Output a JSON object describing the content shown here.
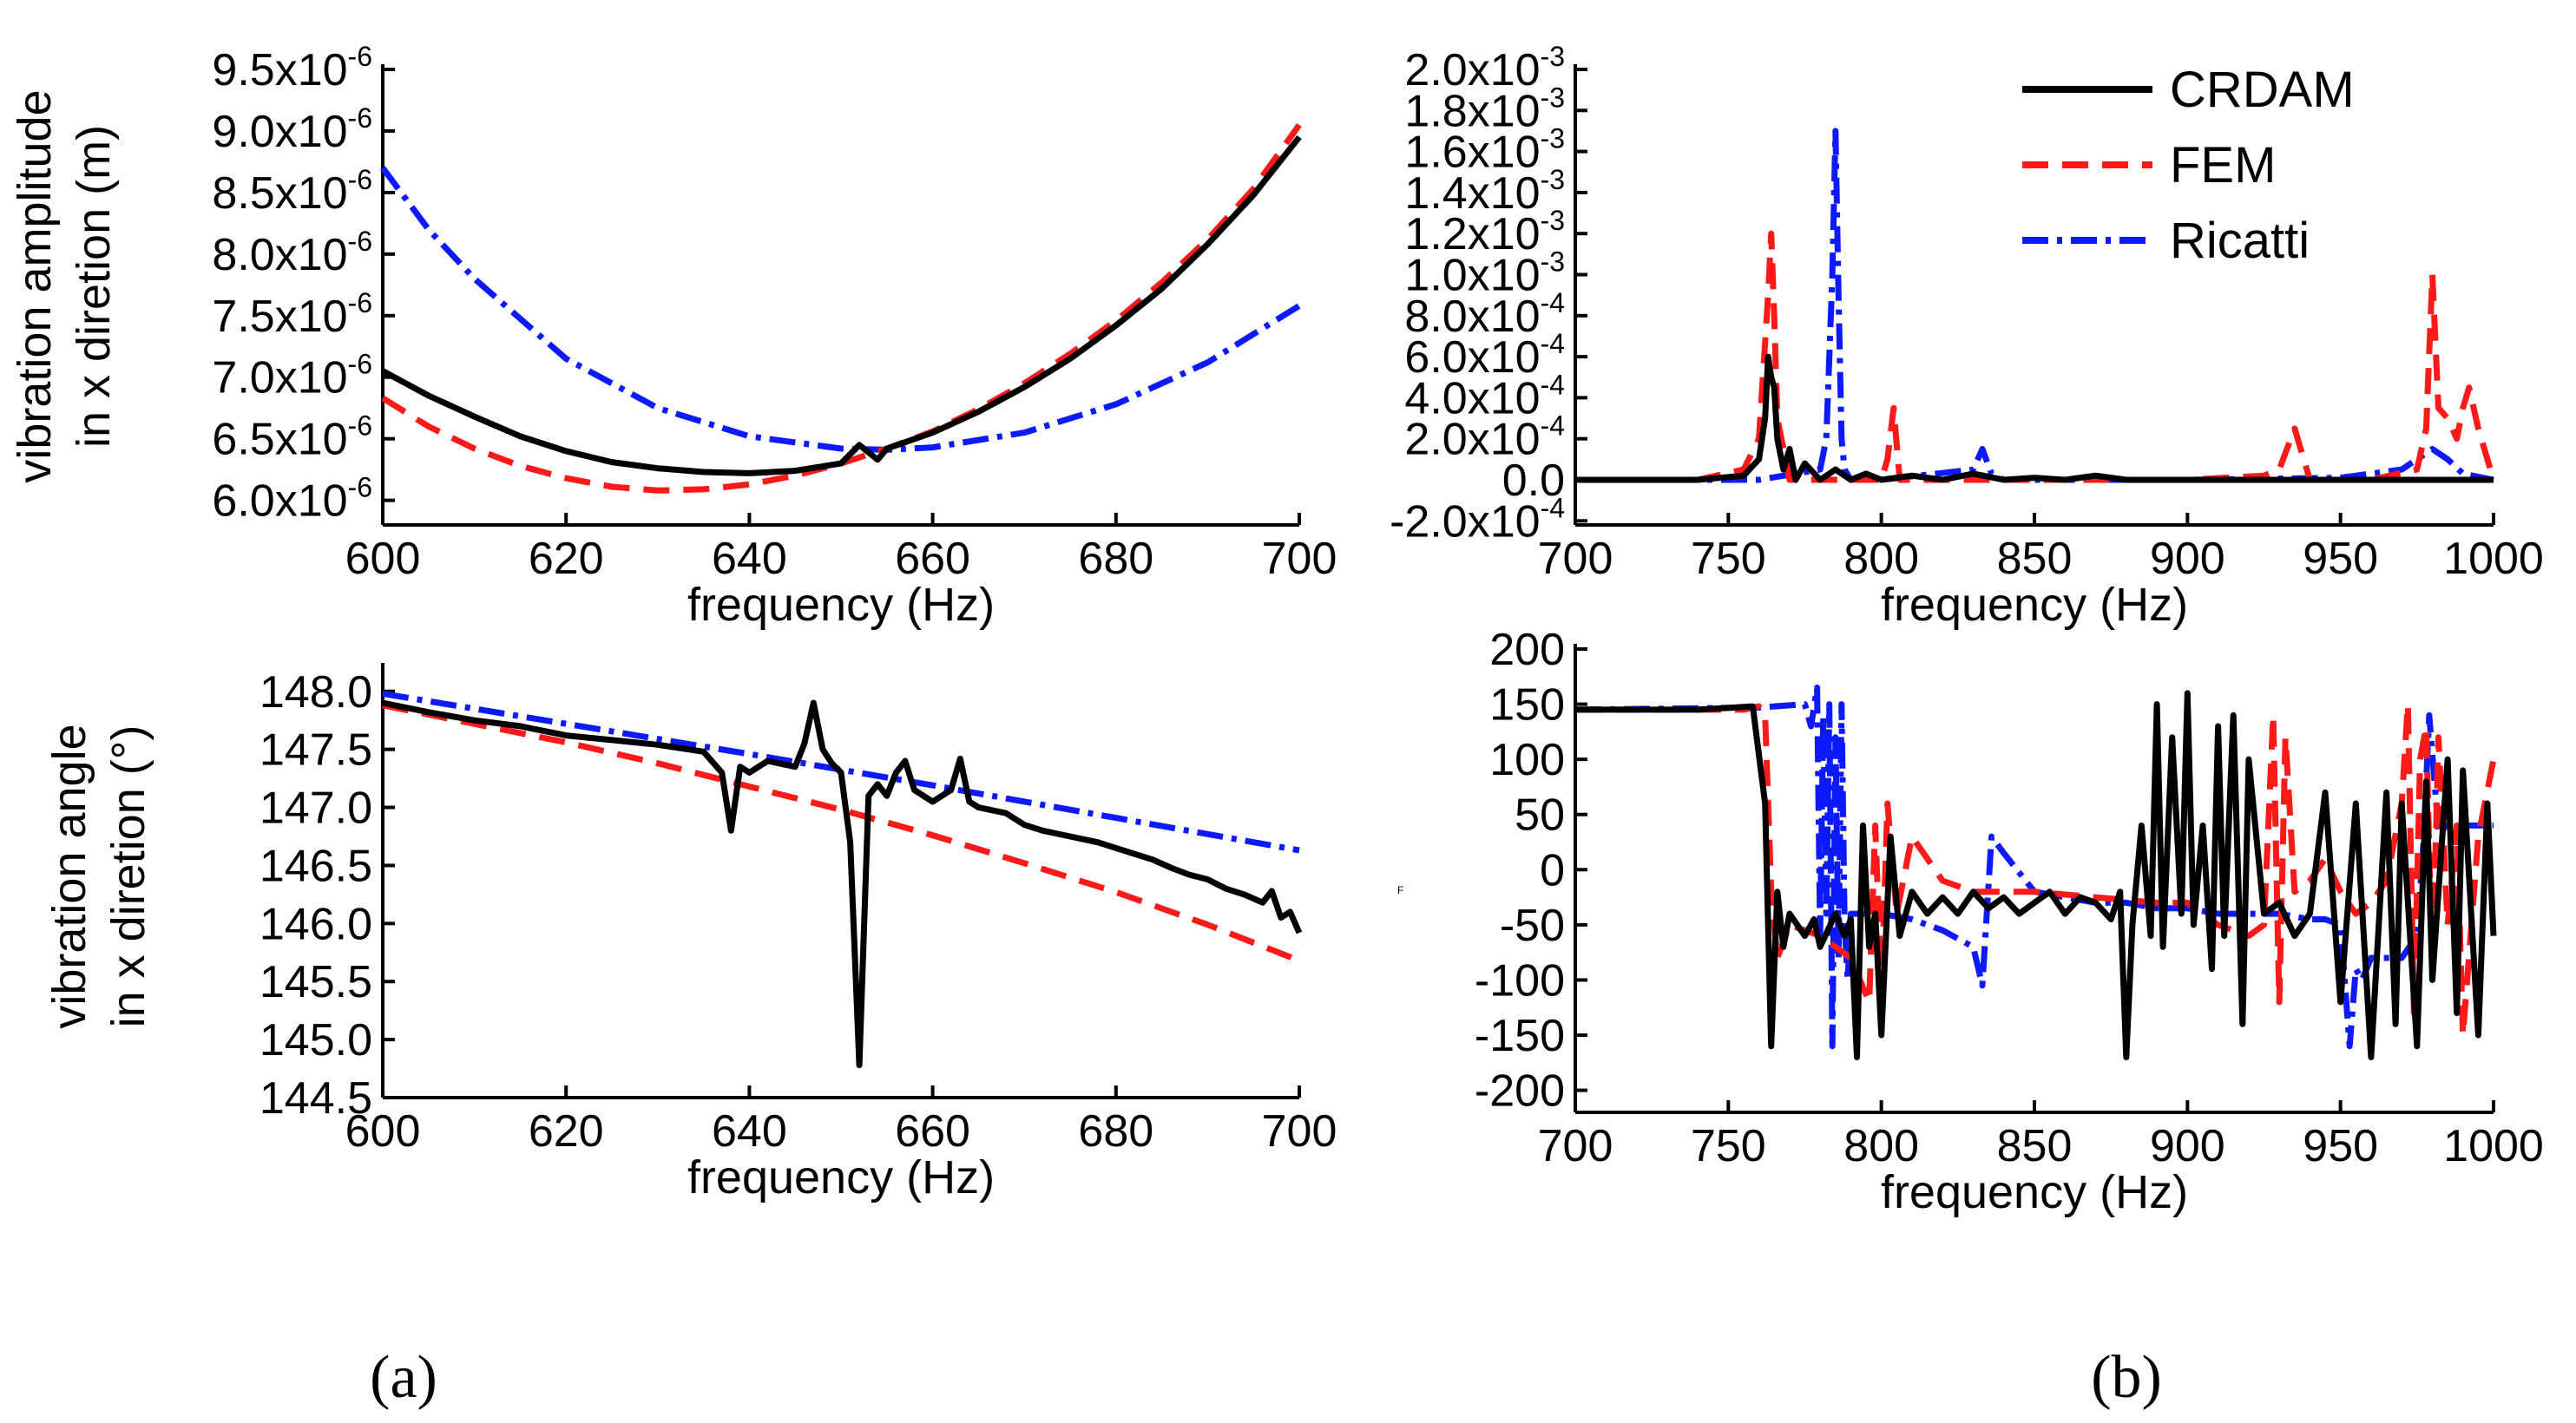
{
  "chart_data": [
    {
      "id": "a-top",
      "type": "line",
      "panel": "(a)",
      "xlabel": "frequency (Hz)",
      "ylabel": [
        "vibration amplitude",
        "in x diretion (m)"
      ],
      "xlim": [
        600,
        700
      ],
      "ylim": [
        5.8e-06,
        9.5e-06
      ],
      "xticks": [
        600,
        620,
        640,
        660,
        680,
        700
      ],
      "xtick_labels": [
        "600",
        "620",
        "640",
        "660",
        "680",
        "700"
      ],
      "yticks": [
        6e-06,
        6.5e-06,
        7e-06,
        7.5e-06,
        8e-06,
        8.5e-06,
        9e-06,
        9.5e-06
      ],
      "ytick_labels": [
        {
          "base": "6.0x10",
          "exp": "-6"
        },
        {
          "base": "6.5x10",
          "exp": "-6"
        },
        {
          "base": "7.0x10",
          "exp": "-6"
        },
        {
          "base": "7.5x10",
          "exp": "-6"
        },
        {
          "base": "8.0x10",
          "exp": "-6"
        },
        {
          "base": "8.5x10",
          "exp": "-6"
        },
        {
          "base": "9.0x10",
          "exp": "-6"
        },
        {
          "base": "9.5x10",
          "exp": "-6"
        }
      ],
      "series": [
        {
          "name": "CRDAM",
          "x": [
            600,
            605,
            610,
            615,
            620,
            625,
            630,
            635,
            640,
            645,
            650,
            652,
            654,
            655,
            660,
            665,
            670,
            675,
            680,
            685,
            690,
            695,
            700
          ],
          "values": [
            7.05e-06,
            6.85e-06,
            6.68e-06,
            6.52e-06,
            6.4e-06,
            6.31e-06,
            6.26e-06,
            6.23e-06,
            6.22e-06,
            6.24e-06,
            6.3e-06,
            6.45e-06,
            6.33e-06,
            6.42e-06,
            6.55e-06,
            6.72e-06,
            6.92e-06,
            7.15e-06,
            7.42e-06,
            7.72e-06,
            8.08e-06,
            8.48e-06,
            8.95e-06
          ]
        },
        {
          "name": "FEM",
          "x": [
            600,
            605,
            610,
            615,
            620,
            625,
            630,
            635,
            640,
            645,
            650,
            655,
            660,
            665,
            670,
            675,
            680,
            685,
            690,
            695,
            700
          ],
          "values": [
            6.83e-06,
            6.6e-06,
            6.42e-06,
            6.28e-06,
            6.18e-06,
            6.11e-06,
            6.08e-06,
            6.09e-06,
            6.13e-06,
            6.2e-06,
            6.3e-06,
            6.42e-06,
            6.56e-06,
            6.74e-06,
            6.95e-06,
            7.19e-06,
            7.46e-06,
            7.77e-06,
            8.12e-06,
            8.53e-06,
            9.05e-06
          ]
        },
        {
          "name": "Ricatti",
          "x": [
            600,
            605,
            610,
            620,
            630,
            640,
            650,
            655,
            660,
            670,
            680,
            690,
            700
          ],
          "values": [
            8.7e-06,
            8.2e-06,
            7.8e-06,
            7.15e-06,
            6.75e-06,
            6.52e-06,
            6.42e-06,
            6.41e-06,
            6.43e-06,
            6.55e-06,
            6.78e-06,
            7.12e-06,
            7.58e-06
          ]
        }
      ]
    },
    {
      "id": "a-bottom",
      "type": "line",
      "panel": "(a)",
      "xlabel": "frequency (Hz)",
      "ylabel": [
        "vibration angle",
        "in x diretion (°)"
      ],
      "xlim": [
        600,
        700
      ],
      "ylim": [
        144.5,
        148.2
      ],
      "xticks": [
        600,
        620,
        640,
        660,
        680,
        700
      ],
      "xtick_labels": [
        "600",
        "620",
        "640",
        "660",
        "680",
        "700"
      ],
      "yticks": [
        144.5,
        145.0,
        145.5,
        146.0,
        146.5,
        147.0,
        147.5,
        148.0
      ],
      "ytick_labels": [
        "144.5",
        "145.0",
        "145.5",
        "146.0",
        "146.5",
        "147.0",
        "147.5",
        "148.0"
      ],
      "series": [
        {
          "name": "CRDAM",
          "x": [
            600,
            605,
            610,
            615,
            620,
            625,
            630,
            635,
            637,
            638,
            639,
            640,
            642,
            645,
            646,
            647,
            648,
            649,
            650,
            651,
            652,
            653,
            654,
            655,
            656,
            657,
            658,
            660,
            662,
            663,
            664,
            665,
            668,
            670,
            672,
            675,
            678,
            680,
            682,
            684,
            686,
            688,
            690,
            692,
            694,
            696,
            697,
            698,
            699,
            700
          ],
          "values": [
            147.9,
            147.82,
            147.75,
            147.7,
            147.62,
            147.58,
            147.54,
            147.48,
            147.3,
            146.8,
            147.35,
            147.3,
            147.4,
            147.35,
            147.55,
            147.9,
            147.5,
            147.38,
            147.3,
            146.7,
            144.78,
            147.1,
            147.2,
            147.1,
            147.3,
            147.4,
            147.15,
            147.05,
            147.15,
            147.42,
            147.05,
            147.0,
            146.95,
            146.85,
            146.8,
            146.75,
            146.7,
            146.65,
            146.6,
            146.55,
            146.48,
            146.42,
            146.38,
            146.3,
            146.25,
            146.18,
            146.28,
            146.05,
            146.1,
            145.92
          ]
        },
        {
          "name": "FEM",
          "x": [
            600,
            610,
            620,
            630,
            640,
            650,
            660,
            670,
            680,
            690,
            700
          ],
          "values": [
            147.88,
            147.72,
            147.56,
            147.38,
            147.18,
            146.98,
            146.76,
            146.52,
            146.27,
            145.99,
            145.68
          ]
        },
        {
          "name": "Ricatti",
          "x": [
            600,
            620,
            640,
            660,
            680,
            700
          ],
          "values": [
            147.98,
            147.72,
            147.46,
            147.19,
            146.91,
            146.63
          ]
        }
      ]
    },
    {
      "id": "b-top",
      "type": "line",
      "panel": "(b)",
      "xlabel": "frequency (Hz)",
      "ylabel": [],
      "xlim": [
        700,
        1000
      ],
      "ylim": [
        -0.00022,
        0.002
      ],
      "xticks": [
        700,
        750,
        800,
        850,
        900,
        950,
        1000
      ],
      "xtick_labels": [
        "700",
        "750",
        "800",
        "850",
        "900",
        "950",
        "1000"
      ],
      "yticks": [
        -0.0002,
        0.0,
        0.0002,
        0.0004,
        0.0006,
        0.0008,
        0.001,
        0.0012,
        0.0014,
        0.0016,
        0.0018,
        0.002
      ],
      "ytick_labels": [
        {
          "base": "-2.0x10",
          "exp": "-4"
        },
        {
          "base": "0.0",
          "exp": ""
        },
        {
          "base": "2.0x10",
          "exp": "-4"
        },
        {
          "base": "4.0x10",
          "exp": "-4"
        },
        {
          "base": "6.0x10",
          "exp": "-4"
        },
        {
          "base": "8.0x10",
          "exp": "-4"
        },
        {
          "base": "1.0x10",
          "exp": "-3"
        },
        {
          "base": "1.2x10",
          "exp": "-3"
        },
        {
          "base": "1.4x10",
          "exp": "-3"
        },
        {
          "base": "1.6x10",
          "exp": "-3"
        },
        {
          "base": "1.8x10",
          "exp": "-3"
        },
        {
          "base": "2.0x10",
          "exp": "-3"
        }
      ],
      "legend": {
        "position": "top-right",
        "entries": [
          "CRDAM",
          "FEM",
          "Ricatti"
        ]
      },
      "series": [
        {
          "name": "CRDAM",
          "x": [
            700,
            740,
            755,
            760,
            762,
            763,
            764,
            765,
            766,
            768,
            770,
            772,
            775,
            780,
            785,
            790,
            795,
            800,
            810,
            820,
            830,
            840,
            850,
            860,
            870,
            880,
            900,
            920,
            940,
            960,
            980,
            1000
          ],
          "values": [
            0,
            0,
            2e-05,
            0.0001,
            0.0003,
            0.0006,
            0.0005,
            0.00045,
            0.0002,
            5e-05,
            0.00015,
            0.0,
            8e-05,
            0.0,
            5e-05,
            0.0,
            3e-05,
            0.0,
            2e-05,
            0.0,
            3e-05,
            0.0,
            1e-05,
            0.0,
            2e-05,
            0.0,
            0.0,
            0.0,
            0.0,
            0.0,
            0.0,
            0.0
          ]
        },
        {
          "name": "FEM",
          "x": [
            700,
            740,
            755,
            760,
            763,
            764,
            765,
            766,
            770,
            800,
            802,
            804,
            806,
            810,
            900,
            925,
            930,
            935,
            940,
            960,
            975,
            978,
            980,
            982,
            985,
            988,
            990,
            992,
            995,
            1000
          ],
          "values": [
            0,
            0,
            5e-05,
            0.0002,
            0.0009,
            0.0012,
            0.0008,
            0.0003,
            0.0,
            0.0,
            0.0001,
            0.00035,
            0.0,
            0.0,
            0.0,
            2e-05,
            5e-05,
            0.00025,
            0.0,
            0.0,
            5e-05,
            0.00025,
            0.001,
            0.00035,
            0.0003,
            0.0002,
            0.00035,
            0.00045,
            0.00025,
            0.0
          ]
        },
        {
          "name": "Ricatti",
          "x": [
            700,
            760,
            780,
            782,
            784,
            785,
            786,
            787,
            788,
            790,
            800,
            830,
            833,
            836,
            840,
            900,
            950,
            970,
            975,
            980,
            985,
            990,
            1000
          ],
          "values": [
            0,
            0,
            5e-05,
            0.0002,
            0.001,
            0.0017,
            0.0009,
            0.0002,
            5e-05,
            0.0,
            0.0,
            5e-05,
            0.00015,
            3e-05,
            0.0,
            0.0,
            1e-05,
            5e-05,
            0.0001,
            0.00015,
            0.0001,
            3e-05,
            0.0
          ]
        }
      ]
    },
    {
      "id": "b-bottom",
      "type": "line",
      "panel": "(b)",
      "xlabel": "frequency (Hz)",
      "ylabel": [],
      "side_mark": "F",
      "xlim": [
        700,
        1000
      ],
      "ylim": [
        -220,
        200
      ],
      "xticks": [
        700,
        750,
        800,
        850,
        900,
        950,
        1000
      ],
      "xtick_labels": [
        "700",
        "750",
        "800",
        "850",
        "900",
        "950",
        "1000"
      ],
      "yticks": [
        -200,
        -150,
        -100,
        -50,
        0,
        50,
        100,
        150,
        200
      ],
      "ytick_labels": [
        "-200",
        "-150",
        "-100",
        "-50",
        "0",
        "50",
        "100",
        "150",
        "200"
      ],
      "series": [
        {
          "name": "CRDAM",
          "x": [
            700,
            740,
            758,
            762,
            764,
            766,
            768,
            770,
            775,
            778,
            780,
            785,
            788,
            790,
            792,
            794,
            796,
            798,
            800,
            803,
            806,
            810,
            815,
            820,
            825,
            830,
            835,
            840,
            845,
            850,
            855,
            860,
            865,
            870,
            875,
            878,
            880,
            882,
            885,
            888,
            890,
            892,
            895,
            898,
            900,
            902,
            905,
            908,
            910,
            912,
            915,
            918,
            920,
            925,
            930,
            935,
            940,
            945,
            950,
            955,
            960,
            965,
            968,
            970,
            975,
            978,
            980,
            985,
            988,
            990,
            995,
            998,
            1000
          ],
          "values": [
            145,
            145,
            148,
            60,
            -160,
            -20,
            -70,
            -40,
            -60,
            -45,
            -70,
            -40,
            -60,
            -45,
            -170,
            40,
            -70,
            -40,
            -150,
            30,
            -60,
            -20,
            -40,
            -25,
            -40,
            -20,
            -35,
            -25,
            -40,
            -30,
            -20,
            -40,
            -25,
            -30,
            -45,
            -20,
            -170,
            -50,
            40,
            -60,
            150,
            -70,
            120,
            -40,
            160,
            -50,
            40,
            -90,
            130,
            -60,
            140,
            -140,
            100,
            -40,
            -30,
            -60,
            -40,
            70,
            -120,
            60,
            -170,
            70,
            -140,
            60,
            -160,
            80,
            -100,
            100,
            -130,
            90,
            -150,
            60,
            -60
          ]
        },
        {
          "name": "FEM",
          "x": [
            700,
            755,
            760,
            762,
            764,
            766,
            770,
            780,
            790,
            796,
            798,
            800,
            802,
            805,
            810,
            820,
            830,
            850,
            870,
            890,
            900,
            910,
            920,
            925,
            928,
            930,
            932,
            935,
            940,
            945,
            950,
            955,
            960,
            965,
            970,
            972,
            974,
            976,
            978,
            980,
            982,
            985,
            988,
            990,
            995,
            1000
          ],
          "values": [
            145,
            145,
            148,
            140,
            -20,
            -80,
            -50,
            -60,
            -80,
            -120,
            40,
            -110,
            60,
            -40,
            30,
            -10,
            -20,
            -20,
            -25,
            -30,
            -30,
            -50,
            -60,
            -50,
            140,
            -120,
            120,
            -20,
            -10,
            10,
            -20,
            -40,
            -30,
            -10,
            60,
            150,
            -130,
            100,
            130,
            -100,
            120,
            -50,
            40,
            -150,
            30,
            100
          ]
        },
        {
          "name": "Ricatti",
          "x": [
            700,
            760,
            775,
            777,
            779,
            780,
            781,
            782,
            783,
            784,
            785,
            786,
            787,
            788,
            789,
            790,
            800,
            810,
            820,
            830,
            833,
            836,
            840,
            850,
            860,
            870,
            880,
            890,
            900,
            910,
            920,
            930,
            940,
            945,
            950,
            953,
            955,
            957,
            960,
            965,
            970,
            975,
            977,
            979,
            982,
            985,
            990,
            995,
            1000
          ],
          "values": [
            145,
            147,
            150,
            130,
            165,
            -60,
            140,
            -40,
            150,
            -160,
            120,
            -80,
            150,
            -50,
            -100,
            -40,
            -40,
            -45,
            -55,
            -70,
            -105,
            30,
            15,
            -20,
            -25,
            -30,
            -30,
            -35,
            -35,
            -40,
            -40,
            -40,
            -45,
            -45,
            -50,
            -160,
            -90,
            -100,
            -80,
            -80,
            -80,
            -60,
            20,
            140,
            35,
            40,
            40,
            40,
            40
          ]
        }
      ]
    }
  ],
  "colors": {
    "CRDAM": "#000000",
    "FEM": "#ff1a1a",
    "Ricatti": "#0d1aff"
  },
  "panel_labels": {
    "a": "(a)",
    "b": "(b)"
  }
}
